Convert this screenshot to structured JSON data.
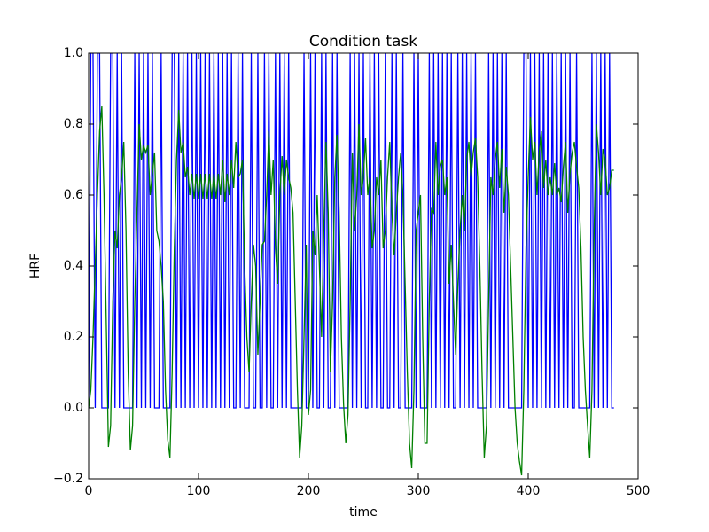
{
  "chart_data": {
    "type": "line",
    "title": "Condition task",
    "xlabel": "time",
    "ylabel": "HRF",
    "x": [
      0,
      2,
      4,
      6,
      8,
      10,
      12,
      14,
      16,
      18,
      20,
      22,
      24,
      26,
      28,
      30,
      32,
      34,
      36,
      38,
      40,
      42,
      44,
      46,
      48,
      50,
      52,
      54,
      56,
      58,
      60,
      62,
      64,
      66,
      68,
      70,
      72,
      74,
      76,
      78,
      80,
      82,
      84,
      86,
      88,
      90,
      92,
      94,
      96,
      98,
      100,
      102,
      104,
      106,
      108,
      110,
      112,
      114,
      116,
      118,
      120,
      122,
      124,
      126,
      128,
      130,
      132,
      134,
      136,
      138,
      140,
      142,
      144,
      146,
      148,
      150,
      152,
      154,
      156,
      158,
      160,
      162,
      164,
      166,
      168,
      170,
      172,
      174,
      176,
      178,
      180,
      182,
      184,
      186,
      188,
      190,
      192,
      194,
      196,
      198,
      200,
      202,
      204,
      206,
      208,
      210,
      212,
      214,
      216,
      218,
      220,
      222,
      224,
      226,
      228,
      230,
      232,
      234,
      236,
      238,
      240,
      242,
      244,
      246,
      248,
      250,
      252,
      254,
      256,
      258,
      260,
      262,
      264,
      266,
      268,
      270,
      272,
      274,
      276,
      278,
      280,
      282,
      284,
      286,
      288,
      290,
      292,
      294,
      296,
      298,
      300,
      302,
      304,
      306,
      308,
      310,
      312,
      314,
      316,
      318,
      320,
      322,
      324,
      326,
      328,
      330,
      332,
      334,
      336,
      338,
      340,
      342,
      344,
      346,
      348,
      350,
      352,
      354,
      356,
      358,
      360,
      362,
      364,
      366,
      368,
      370,
      372,
      374,
      376,
      378,
      380,
      382,
      384,
      386,
      388,
      390,
      392,
      394,
      396,
      398,
      400,
      402,
      404,
      406,
      408,
      410,
      412,
      414,
      416,
      418,
      420,
      422,
      424,
      426,
      428,
      430,
      432,
      434,
      436,
      438,
      440,
      442,
      444,
      446,
      448,
      450,
      452,
      454,
      456,
      458,
      460,
      462,
      464,
      466,
      468,
      470,
      472,
      474,
      476,
      478
    ],
    "series": [
      {
        "color": "#0000ff",
        "values": [
          0,
          1,
          1,
          0,
          1,
          1,
          0,
          0,
          0,
          0,
          1,
          1,
          0,
          1,
          0,
          1,
          0,
          0,
          0,
          0,
          0,
          1,
          0,
          1,
          0,
          1,
          0,
          1,
          0,
          1,
          0,
          0,
          0,
          1,
          0,
          0,
          0,
          0,
          1,
          1,
          0,
          1,
          0,
          1,
          0,
          1,
          0,
          1,
          0,
          1,
          0,
          1,
          0,
          1,
          0,
          1,
          0,
          1,
          0,
          1,
          0,
          1,
          0,
          1,
          0,
          1,
          0,
          0,
          1,
          0,
          1,
          0,
          0,
          0,
          1,
          0,
          0,
          1,
          0,
          0,
          1,
          0,
          1,
          0,
          0,
          1,
          0,
          1,
          0,
          1,
          0,
          1,
          0,
          0,
          0,
          0,
          0,
          0,
          1,
          0,
          0,
          1,
          0,
          1,
          0,
          0,
          1,
          0,
          1,
          0,
          0,
          1,
          0,
          1,
          0,
          0,
          0,
          0,
          0,
          1,
          0,
          1,
          0,
          1,
          0,
          1,
          0,
          0,
          1,
          0,
          1,
          0,
          1,
          0,
          0,
          1,
          0,
          0,
          1,
          0,
          1,
          0,
          0,
          1,
          0,
          0,
          0,
          0,
          1,
          0,
          1,
          0,
          0,
          0,
          0,
          1,
          0,
          1,
          0,
          1,
          0,
          1,
          0,
          1,
          0,
          1,
          0,
          0,
          1,
          0,
          1,
          0,
          1,
          0,
          1,
          0,
          1,
          0,
          0,
          0,
          0,
          0,
          1,
          0,
          1,
          0,
          1,
          0,
          1,
          0,
          1,
          0,
          0,
          0,
          0,
          0,
          0,
          0,
          1,
          1,
          0,
          1,
          0,
          1,
          0,
          1,
          0,
          1,
          0,
          1,
          0,
          1,
          0,
          1,
          0,
          1,
          0,
          1,
          0,
          1,
          0,
          0,
          1,
          0,
          0,
          0,
          0,
          0,
          0,
          1,
          0,
          1,
          0,
          1,
          0,
          1,
          0,
          1,
          0,
          0
        ]
      },
      {
        "color": "#008000",
        "values": [
          0,
          0.05,
          0.2,
          0.4,
          0.6,
          0.78,
          0.85,
          0.6,
          0.25,
          -0.11,
          -0.05,
          0.3,
          0.5,
          0.45,
          0.6,
          0.65,
          0.75,
          0.5,
          0.1,
          -0.12,
          -0.05,
          0.3,
          0.55,
          0.8,
          0.7,
          0.74,
          0.72,
          0.74,
          0.6,
          0.66,
          0.72,
          0.5,
          0.47,
          0.4,
          0.3,
          0.05,
          -0.09,
          -0.14,
          0.1,
          0.45,
          0.7,
          0.84,
          0.72,
          0.75,
          0.65,
          0.68,
          0.6,
          0.66,
          0.59,
          0.66,
          0.59,
          0.66,
          0.59,
          0.66,
          0.59,
          0.66,
          0.59,
          0.66,
          0.59,
          0.66,
          0.6,
          0.7,
          0.58,
          0.66,
          0.6,
          0.7,
          0.62,
          0.75,
          0.65,
          0.66,
          0.7,
          0.4,
          0.2,
          0.1,
          0.3,
          0.46,
          0.4,
          0.15,
          0.3,
          0.46,
          0.47,
          0.6,
          0.78,
          0.6,
          0.7,
          0.45,
          0.35,
          0.6,
          0.71,
          0.6,
          0.7,
          0.65,
          0.62,
          0.55,
          0.3,
          0.05,
          -0.14,
          -0.05,
          0.2,
          0.46,
          -0.02,
          0.05,
          0.5,
          0.43,
          0.6,
          0.4,
          0.2,
          0.5,
          0.75,
          0.55,
          0.1,
          0.3,
          0.65,
          0.77,
          0.55,
          0.2,
          0.01,
          -0.1,
          -0.02,
          0.3,
          0.72,
          0.5,
          0.6,
          0.8,
          0.6,
          0.65,
          0.76,
          0.6,
          0.65,
          0.45,
          0.5,
          0.65,
          0.6,
          0.7,
          0.45,
          0.5,
          0.65,
          0.75,
          0.55,
          0.43,
          0.55,
          0.65,
          0.72,
          0.6,
          0.35,
          0.1,
          -0.1,
          -0.17,
          0.05,
          0.5,
          0.55,
          0.6,
          0.2,
          -0.1,
          -0.1,
          0.3,
          0.56,
          0.55,
          0.75,
          0.6,
          0.68,
          0.7,
          0.6,
          0.65,
          0.35,
          0.46,
          0.3,
          0.15,
          0.35,
          0.5,
          0.6,
          0.5,
          0.7,
          0.75,
          0.65,
          0.72,
          0.76,
          0.65,
          0.4,
          0.1,
          -0.14,
          -0.05,
          0.3,
          0.65,
          0.6,
          0.7,
          0.75,
          0.62,
          0.73,
          0.55,
          0.68,
          0.6,
          0.4,
          0.2,
          0,
          -0.1,
          -0.15,
          -0.19,
          0.05,
          0.45,
          0.65,
          0.82,
          0.7,
          0.75,
          0.6,
          0.72,
          0.78,
          0.62,
          0.7,
          0.6,
          0.65,
          0.6,
          0.69,
          0.6,
          0.62,
          0.58,
          0.68,
          0.75,
          0.55,
          0.66,
          0.72,
          0.75,
          0.68,
          0.62,
          0.45,
          0.2,
          0.05,
          -0.05,
          -0.14,
          0.05,
          0.5,
          0.8,
          0.72,
          0.6,
          0.73,
          0.7,
          0.6,
          0.62,
          0.67,
          0.67
        ]
      }
    ],
    "xlim": [
      0,
      500
    ],
    "xticks": [
      0,
      100,
      200,
      300,
      400,
      500
    ],
    "ylim": [
      -0.2,
      1.0
    ],
    "yticks": [
      {
        "value": -0.2,
        "label": "−0.2"
      },
      {
        "value": 0,
        "label": "0.0"
      },
      0.2,
      0.4,
      0.6,
      0.8,
      {
        "value": 1,
        "label": "1.0"
      }
    ],
    "grid": false
  }
}
